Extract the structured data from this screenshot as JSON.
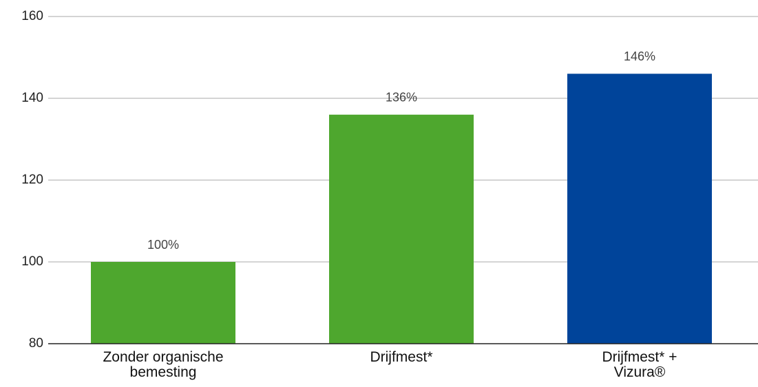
{
  "chart_data": {
    "type": "bar",
    "categories": [
      "Zonder organische\nbemesting",
      "Drijfmest*",
      "Drijfmest* +\nVizura®"
    ],
    "values": [
      100,
      136,
      146
    ],
    "value_labels": [
      "100%",
      "136%",
      "146%"
    ],
    "colors": [
      "#4ea72e",
      "#4ea72e",
      "#00449a"
    ],
    "ylim": [
      80,
      160
    ],
    "yticks": [
      80,
      100,
      120,
      140,
      160
    ],
    "grid": true
  }
}
